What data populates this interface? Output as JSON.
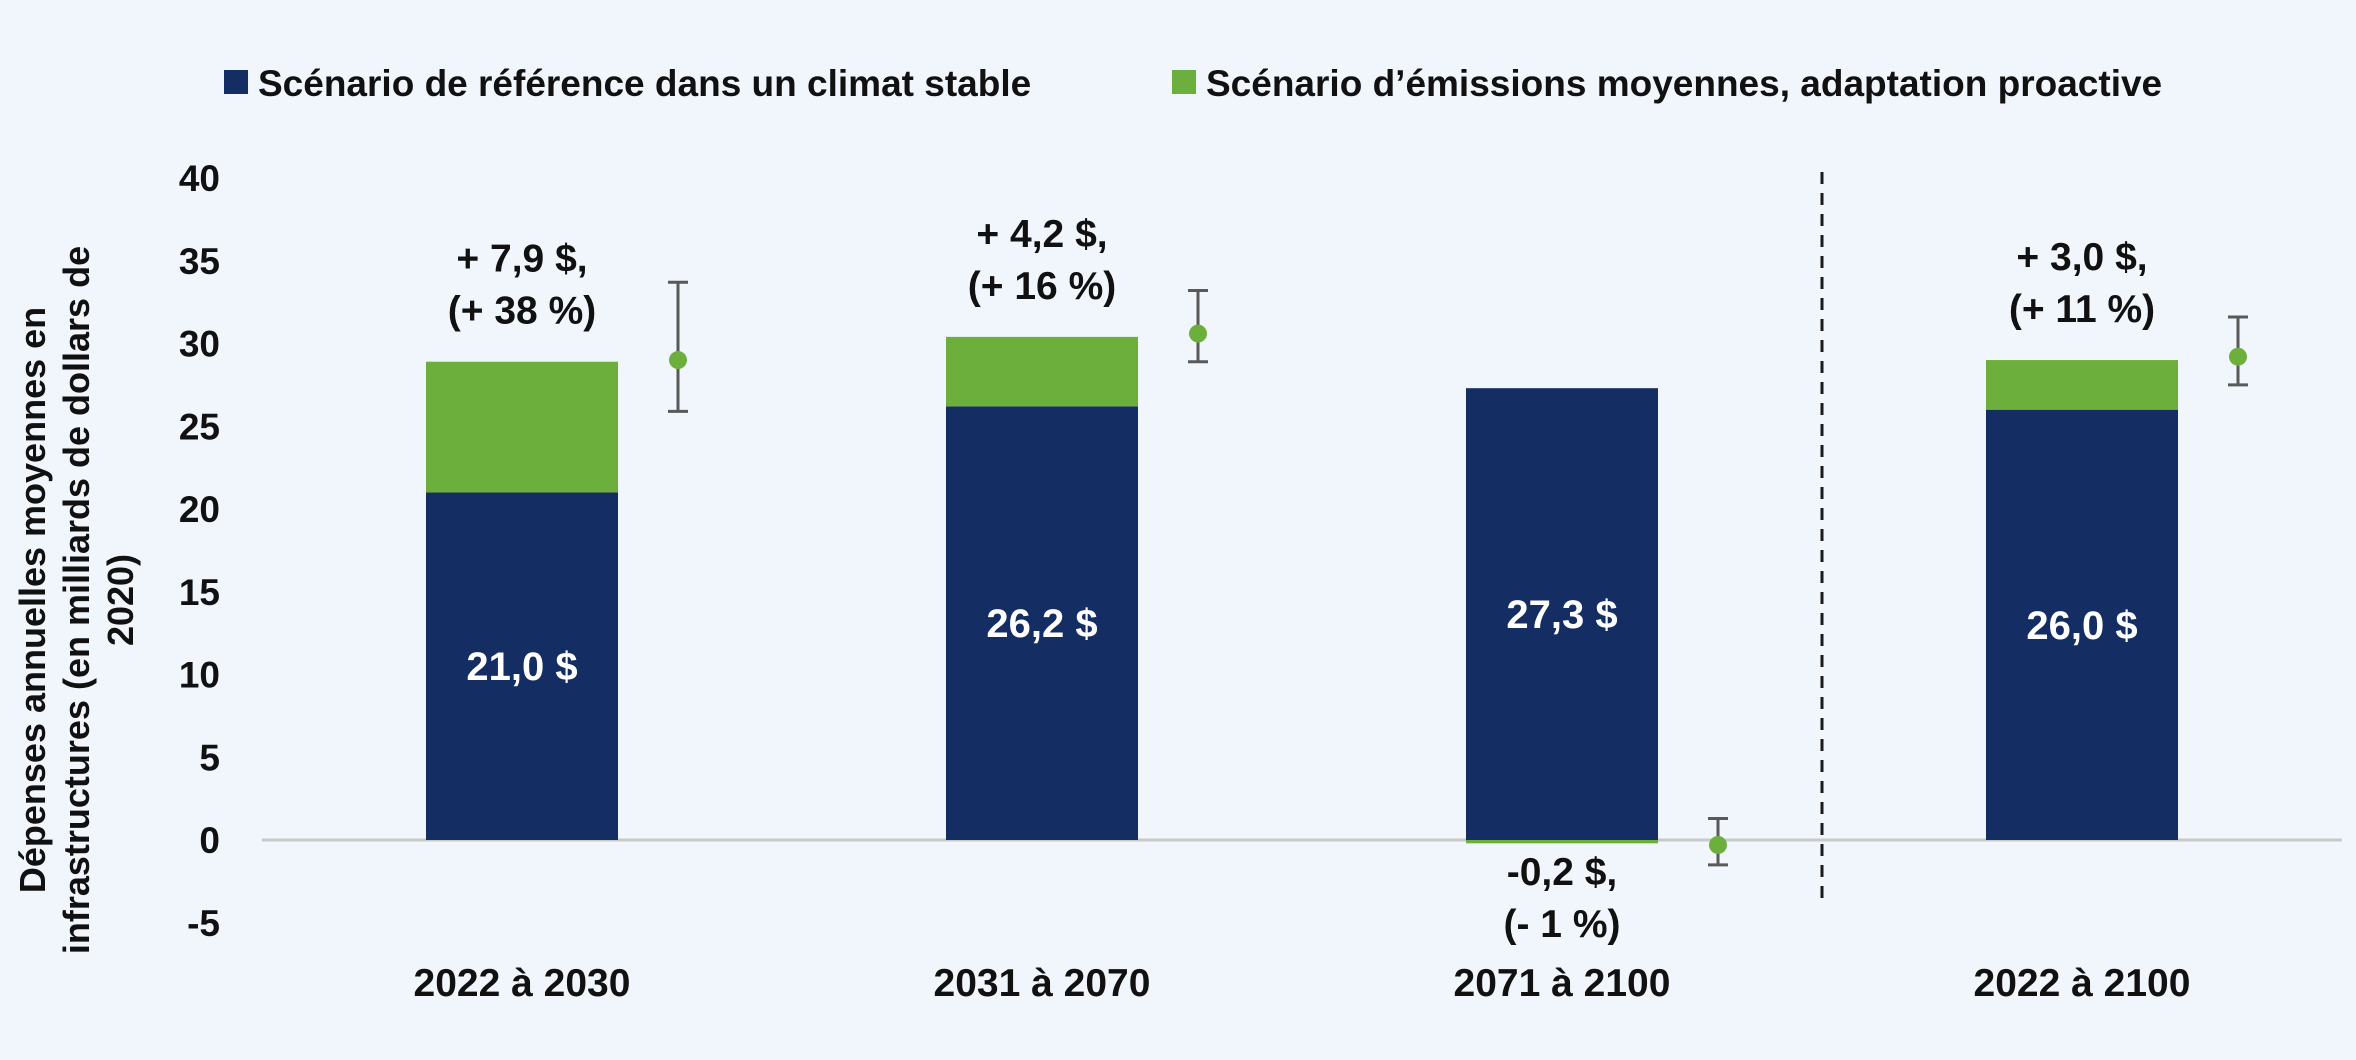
{
  "chart_data": {
    "type": "bar",
    "stacked": true,
    "title": "",
    "xlabel": "",
    "ylabel_lines": [
      "Dépenses annuelles moyennes en",
      "infrastructures (en milliards de dollars de",
      "2020)"
    ],
    "ylim": [
      -5,
      40
    ],
    "yticks": [
      "40",
      "35",
      "30",
      "25",
      "20",
      "15",
      "10",
      "5",
      "0",
      "-5"
    ],
    "ytick_values": [
      40,
      35,
      30,
      25,
      20,
      15,
      10,
      5,
      0,
      -5
    ],
    "grid": false,
    "legend_position": "top",
    "categories": [
      "2022 à 2030",
      "2031 à 2070",
      "2071 à 2100",
      "2022 à 2100"
    ],
    "series": [
      {
        "name": "Scénario de référence dans un climat stable",
        "color": "#142d63",
        "values": [
          21.0,
          26.2,
          27.3,
          26.0
        ],
        "labels": [
          "21,0 $",
          "26,2 $",
          "27,3 $",
          "26,0 $"
        ]
      },
      {
        "name": "Scénario d’émissions moyennes, adaptation proactive",
        "color": "#6daf3d",
        "values": [
          7.9,
          4.2,
          -0.2,
          3.0
        ],
        "labels": [
          [
            "+ 7,9 $,",
            "(+ 38 %)"
          ],
          [
            "+ 4,2 $,",
            "(+ 16 %)"
          ],
          [
            "-0,2 $,",
            "(- 1 %)"
          ],
          [
            "+ 3,0 $,",
            "(+ 11 %)"
          ]
        ]
      }
    ],
    "error_bars": [
      {
        "value": 29.0,
        "low": 25.9,
        "high": 33.7
      },
      {
        "value": 30.6,
        "low": 28.9,
        "high": 33.2
      },
      {
        "value": -0.3,
        "low": -1.5,
        "high": 1.3
      },
      {
        "value": 29.2,
        "low": 27.5,
        "high": 31.6
      }
    ],
    "divider_after_category": 2
  }
}
